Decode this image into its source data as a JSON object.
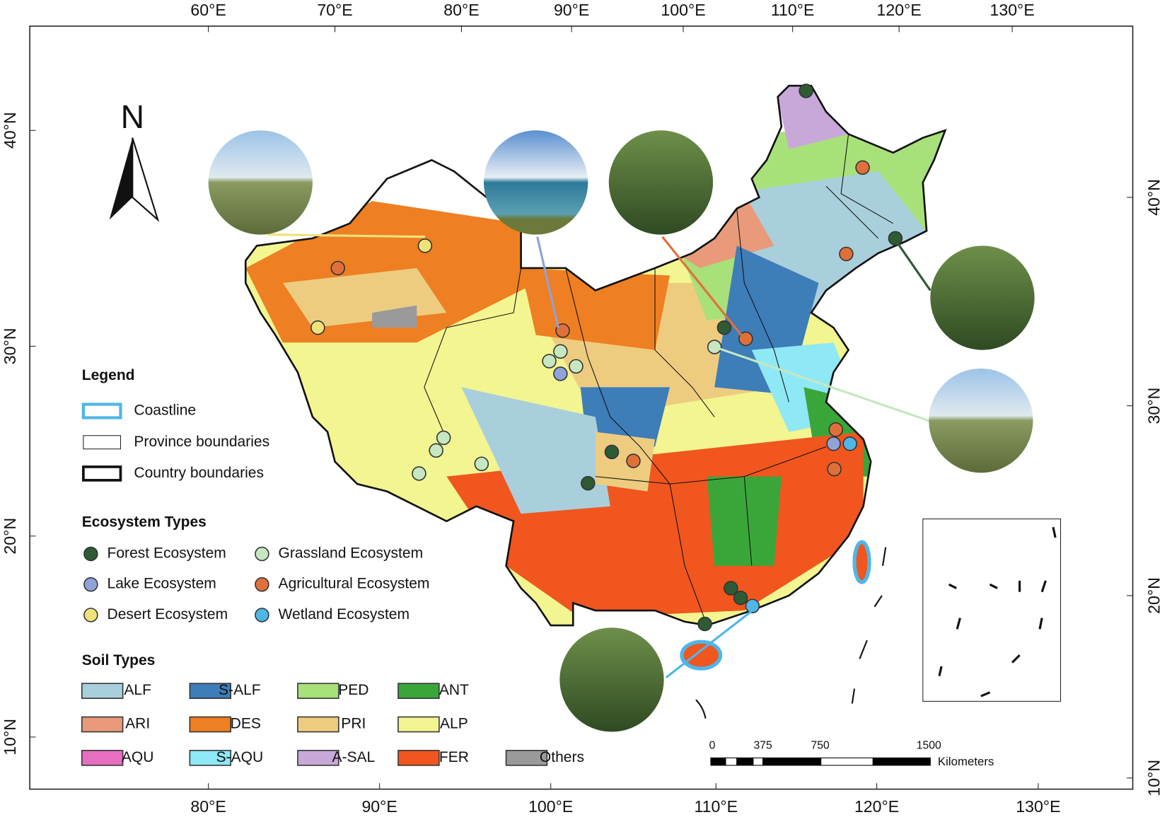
{
  "map": {
    "north_label": "N",
    "top_ticks": [
      "60°E",
      "70°E",
      "80°E",
      "90°E",
      "100°E",
      "110°E",
      "120°E",
      "130°E"
    ],
    "bottom_ticks": [
      "80°E",
      "90°E",
      "100°E",
      "110°E",
      "120°E",
      "130°E"
    ],
    "left_ticks": [
      "40°N",
      "30°N",
      "20°N",
      "10°N"
    ],
    "right_ticks": [
      "40°N",
      "30°N",
      "20°N",
      "10°N"
    ],
    "legend": {
      "title": "Legend",
      "items": [
        "Coastline",
        "Province boundaries",
        "Country boundaries"
      ]
    },
    "ecosystem_types": {
      "title": "Ecosystem Types",
      "items": [
        {
          "name": "Forest Ecosystem",
          "color": "#2e5b34"
        },
        {
          "name": "Grassland Ecosystem",
          "color": "#c6e7c0"
        },
        {
          "name": "Lake Ecosystem",
          "color": "#8fa3d8"
        },
        {
          "name": "Agricultural Ecosystem",
          "color": "#e0703a"
        },
        {
          "name": "Desert Ecosystem",
          "color": "#efe27a"
        },
        {
          "name": "Wetland Ecosystem",
          "color": "#4fb6e8"
        }
      ]
    },
    "soil_types": {
      "title": "Soil Types",
      "items": [
        {
          "name": "ALF",
          "color": "#a9cfdc"
        },
        {
          "name": "S-ALF",
          "color": "#3d7db8"
        },
        {
          "name": "PED",
          "color": "#a8e07a"
        },
        {
          "name": "ANT",
          "color": "#3aa63a"
        },
        {
          "name": "ARI",
          "color": "#e89a7a"
        },
        {
          "name": "DES",
          "color": "#ee7f22"
        },
        {
          "name": "PRI",
          "color": "#edcc80"
        },
        {
          "name": "ALP",
          "color": "#f2f590"
        },
        {
          "name": "AQU",
          "color": "#e66fc0"
        },
        {
          "name": "S-AQU",
          "color": "#8fe8f5"
        },
        {
          "name": "A-SAL",
          "color": "#c8a8d8"
        },
        {
          "name": "FER",
          "color": "#f0561e"
        },
        {
          "name": "Others",
          "color": "#9a9a9a"
        }
      ]
    },
    "scale_bar": {
      "labels": [
        "0",
        "375",
        "750",
        "1500"
      ],
      "unit": "Kilometers"
    }
  }
}
